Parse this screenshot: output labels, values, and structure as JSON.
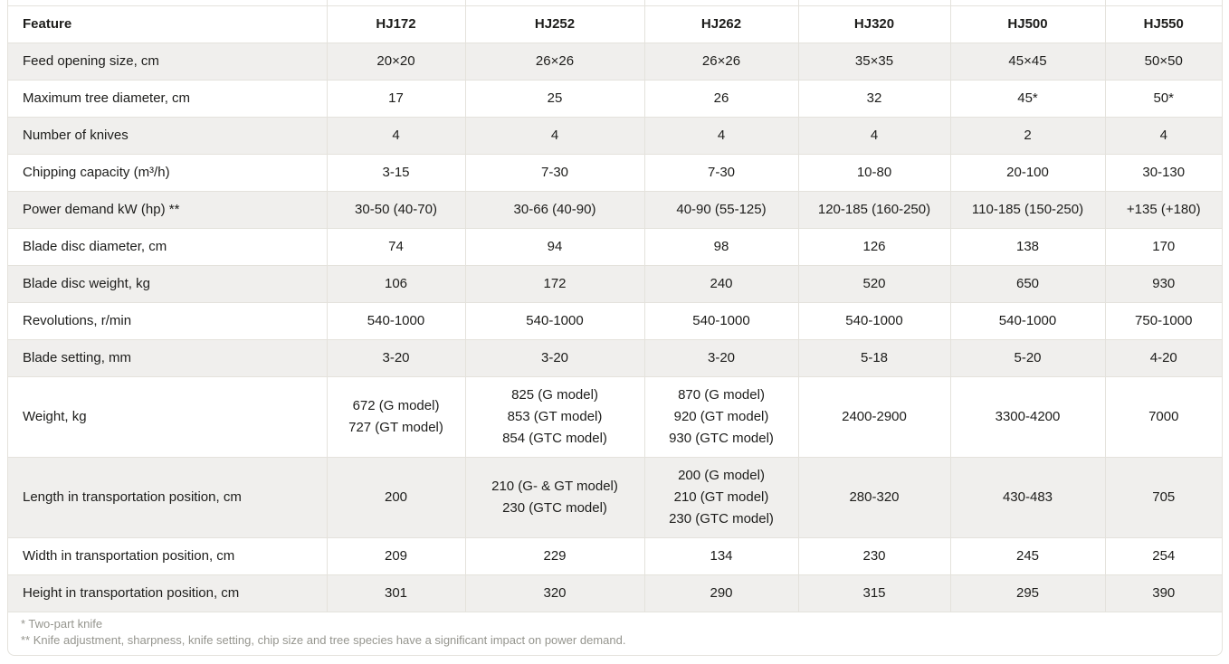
{
  "table": {
    "columns": [
      "Feature",
      "HJ172",
      "HJ252",
      "HJ262",
      "HJ320",
      "HJ500",
      "HJ550"
    ],
    "rows": [
      {
        "feature": "Feed opening size, cm",
        "values": [
          "20×20",
          "26×26",
          "26×26",
          "35×35",
          "45×45",
          "50×50"
        ]
      },
      {
        "feature": "Maximum tree diameter, cm",
        "values": [
          "17",
          "25",
          "26",
          "32",
          "45*",
          "50*"
        ]
      },
      {
        "feature": "Number of knives",
        "values": [
          "4",
          "4",
          "4",
          "4",
          "2",
          "4"
        ]
      },
      {
        "feature": "Chipping capacity (m³/h)",
        "values": [
          "3-15",
          "7-30",
          "7-30",
          "10-80",
          "20-100",
          "30-130"
        ]
      },
      {
        "feature": "Power demand kW (hp) **",
        "values": [
          "30-50 (40-70)",
          "30-66 (40-90)",
          "40-90 (55-125)",
          "120-185 (160-250)",
          "110-185 (150-250)",
          "+135 (+180)"
        ]
      },
      {
        "feature": "Blade disc diameter, cm",
        "values": [
          "74",
          "94",
          "98",
          "126",
          "138",
          "170"
        ]
      },
      {
        "feature": "Blade disc weight, kg",
        "values": [
          "106",
          "172",
          "240",
          "520",
          "650",
          "930"
        ]
      },
      {
        "feature": "Revolutions, r/min",
        "values": [
          "540-1000",
          "540-1000",
          "540-1000",
          "540-1000",
          "540-1000",
          "750-1000"
        ]
      },
      {
        "feature": "Blade setting, mm",
        "values": [
          "3-20",
          "3-20",
          "3-20",
          "5-18",
          "5-20",
          "4-20"
        ]
      },
      {
        "feature": "Weight, kg",
        "values": [
          "672 (G model)\n727 (GT model)",
          "825 (G model)\n853 (GT model)\n854 (GTC model)",
          "870 (G model)\n920 (GT model)\n930 (GTC model)",
          "2400-2900",
          "3300-4200",
          "7000"
        ]
      },
      {
        "feature": "Length in transportation position, cm",
        "values": [
          "200",
          "210 (G- & GT model)\n230 (GTC model)",
          "200 (G model)\n210 (GT model)\n230 (GTC model)",
          "280-320",
          "430-483",
          "705"
        ]
      },
      {
        "feature": "Width in transportation position, cm",
        "values": [
          "209",
          "229",
          "134",
          "230",
          "245",
          "254"
        ]
      },
      {
        "feature": "Height in transportation position, cm",
        "values": [
          "301",
          "320",
          "290",
          "315",
          "295",
          "390"
        ]
      }
    ],
    "footnotes": [
      "* Two-part knife",
      "** Knife adjustment, sharpness, knife setting, chip size and tree species have a significant impact on power demand."
    ]
  },
  "colors": {
    "row_stripe": "#f0efed",
    "border": "#e4e2dc",
    "text": "#1d1d1b",
    "footnote_text": "#95958e"
  }
}
